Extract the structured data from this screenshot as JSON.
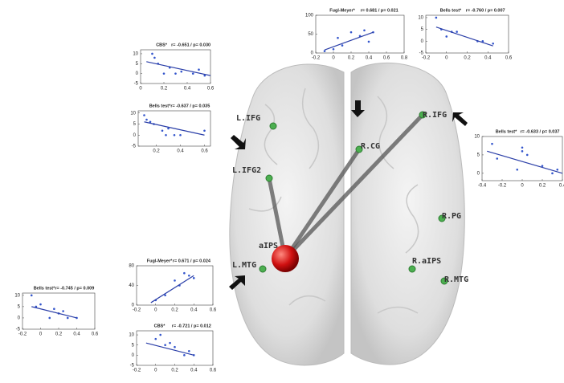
{
  "chart_data": [
    {
      "type": "scatter",
      "title": "CBS*",
      "stat": "r= -0.651 / p= 0.030",
      "color": "#3355cc",
      "fit_color": "#2b3fa8",
      "x": [
        0.1,
        0.12,
        0.15,
        0.2,
        0.25,
        0.3,
        0.35,
        0.45,
        0.5,
        0.55
      ],
      "values": [
        10,
        8,
        5,
        0,
        3,
        0,
        1,
        0,
        2,
        -1
      ],
      "fit": {
        "x": [
          0.05,
          0.6
        ],
        "values": [
          6,
          -1
        ]
      },
      "xlim": [
        0,
        0.6
      ],
      "ylim": [
        -5,
        12
      ],
      "xticks": [
        0,
        0.2,
        0.4,
        0.6
      ],
      "yticks": [
        -5,
        0,
        5,
        10
      ]
    },
    {
      "type": "scatter",
      "title": "Bells test*",
      "stat": "r= -0.637 / p= 0.035",
      "color": "#3355cc",
      "fit_color": "#2b3fa8",
      "x": [
        0.1,
        0.12,
        0.15,
        0.18,
        0.25,
        0.28,
        0.3,
        0.35,
        0.4,
        0.6
      ],
      "values": [
        9,
        7,
        6,
        5,
        2,
        0,
        3,
        0,
        0,
        2
      ],
      "fit": {
        "x": [
          0.1,
          0.6
        ],
        "values": [
          6,
          0
        ]
      },
      "xlim": [
        0.05,
        0.65
      ],
      "ylim": [
        -5,
        11
      ],
      "xticks": [
        0.2,
        0.4,
        0.6
      ],
      "yticks": [
        -5,
        0,
        5,
        10
      ]
    },
    {
      "type": "scatter",
      "title": "Fugl-Meyer*",
      "stat": "r= 0.681 / p= 0.021",
      "color": "#3355cc",
      "fit_color": "#2b3fa8",
      "x": [
        -0.1,
        0,
        0.05,
        0.1,
        0.2,
        0.3,
        0.35,
        0.4,
        0.45
      ],
      "values": [
        5,
        10,
        40,
        20,
        55,
        45,
        60,
        30,
        55
      ],
      "fit": {
        "x": [
          -0.1,
          0.45
        ],
        "values": [
          8,
          55
        ]
      },
      "xlim": [
        -0.2,
        0.8
      ],
      "ylim": [
        0,
        100
      ],
      "xticks": [
        -0.2,
        0,
        0.2,
        0.4,
        0.6,
        0.8
      ],
      "yticks": [
        0,
        50,
        100
      ]
    },
    {
      "type": "scatter",
      "title": "Bells test*",
      "stat": "r= -0.760 / p= 0.007",
      "color": "#3355cc",
      "fit_color": "#2b3fa8",
      "x": [
        -0.1,
        -0.05,
        0,
        0.05,
        0.1,
        0.3,
        0.35,
        0.45
      ],
      "values": [
        10,
        5,
        2,
        4,
        4,
        0,
        0,
        -1
      ],
      "fit": {
        "x": [
          -0.1,
          0.45
        ],
        "values": [
          6,
          -2
        ]
      },
      "xlim": [
        -0.2,
        0.6
      ],
      "ylim": [
        -5,
        11
      ],
      "xticks": [
        -0.2,
        0,
        0.2,
        0.4,
        0.6
      ],
      "yticks": [
        -5,
        0,
        5,
        10
      ]
    },
    {
      "type": "scatter",
      "title": "Bells test*",
      "stat": "r= -0.633 / p= 0.037",
      "color": "#3355cc",
      "fit_color": "#2b3fa8",
      "x": [
        -0.3,
        -0.25,
        0,
        0,
        0.05,
        -0.05,
        0.2,
        0.3,
        0.35
      ],
      "values": [
        8,
        4,
        6,
        7,
        5,
        1,
        2,
        0,
        1
      ],
      "fit": {
        "x": [
          -0.35,
          0.4
        ],
        "values": [
          6,
          0
        ]
      },
      "xlim": [
        -0.4,
        0.4
      ],
      "ylim": [
        -2,
        10
      ],
      "xticks": [
        -0.4,
        -0.2,
        0,
        0.2,
        0.4
      ],
      "yticks": [
        0,
        5,
        10
      ]
    },
    {
      "type": "scatter",
      "title": "Bells test*",
      "stat": "r= -0.745 / p= 0.009",
      "color": "#3355cc",
      "fit_color": "#2b3fa8",
      "x": [
        -0.1,
        -0.05,
        0,
        0.1,
        0.15,
        0.2,
        0.25,
        0.3,
        0.4
      ],
      "values": [
        10,
        5,
        6,
        0,
        4,
        2,
        3,
        0,
        0
      ],
      "fit": {
        "x": [
          -0.1,
          0.4
        ],
        "values": [
          5,
          0
        ]
      },
      "xlim": [
        -0.2,
        0.6
      ],
      "ylim": [
        -5,
        11
      ],
      "xticks": [
        -0.2,
        0,
        0.2,
        0.4,
        0.6
      ],
      "yticks": [
        -5,
        0,
        5,
        10
      ]
    },
    {
      "type": "scatter",
      "title": "Fugl-Meyer*",
      "stat": "r= 0.671 / p= 0.024",
      "color": "#3355cc",
      "fit_color": "#2b3fa8",
      "x": [
        0,
        0.1,
        0.2,
        0.25,
        0.3,
        0.35,
        0.4
      ],
      "values": [
        10,
        20,
        50,
        40,
        65,
        60,
        55
      ],
      "fit": {
        "x": [
          -0.05,
          0.4
        ],
        "values": [
          5,
          60
        ]
      },
      "xlim": [
        -0.2,
        0.6
      ],
      "ylim": [
        0,
        80
      ],
      "xticks": [
        -0.2,
        0,
        0.2,
        0.4,
        0.6
      ],
      "yticks": [
        0,
        40,
        80
      ]
    },
    {
      "type": "scatter",
      "title": "CBS*",
      "stat": "r= -0.721 / p= 0.012",
      "color": "#3355cc",
      "fit_color": "#2b3fa8",
      "x": [
        0,
        0.05,
        0.1,
        0.15,
        0.2,
        0.3,
        0.35,
        0.4
      ],
      "values": [
        8,
        10,
        5,
        6,
        4,
        0,
        2,
        0
      ],
      "fit": {
        "x": [
          -0.1,
          0.4
        ],
        "values": [
          6,
          0
        ]
      },
      "xlim": [
        -0.2,
        0.6
      ],
      "ylim": [
        -5,
        12
      ],
      "xticks": [
        -0.2,
        0,
        0.2,
        0.4,
        0.6
      ],
      "yticks": [
        -5,
        0,
        5,
        10
      ]
    }
  ],
  "brain": {
    "seed": "aIPS",
    "nodes": [
      "L.IFG",
      "L.IFG2",
      "L.MTG",
      "R.CG",
      "R.IFG",
      "R.PG",
      "R.aIPS",
      "R.MTG"
    ]
  }
}
